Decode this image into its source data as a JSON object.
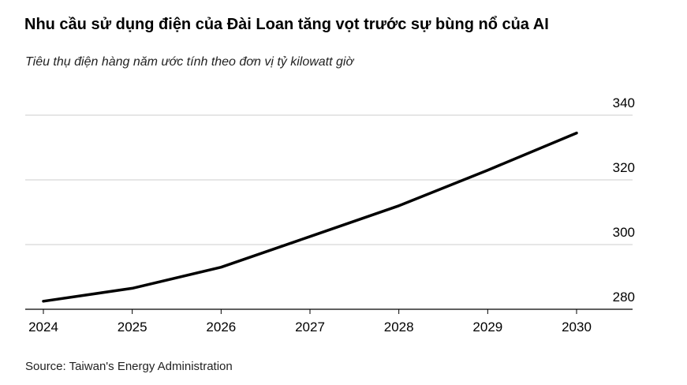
{
  "title": "Nhu cầu sử dụng điện của Đài Loan tăng vọt trước sự bùng nổ của AI",
  "subtitle": "Tiêu thụ điện hàng năm ước tính theo đơn vị tỷ kilowatt giờ",
  "source": "Source: Taiwan's Energy Administration",
  "chart_data": {
    "type": "line",
    "title": "Nhu cầu sử dụng điện của Đài Loan tăng vọt trước sự bùng nổ của AI",
    "subtitle": "Tiêu thụ điện hàng năm ước tính theo đơn vị tỷ kilowatt giờ",
    "x": [
      "2024",
      "2025",
      "2026",
      "2027",
      "2028",
      "2029",
      "2030"
    ],
    "series": [
      {
        "values": [
          282.5,
          286.5,
          293,
          302.5,
          312,
          323,
          334.5
        ],
        "color": "#000000"
      }
    ],
    "xlabel": "",
    "ylabel": "",
    "ylim": [
      280,
      340
    ],
    "yticks": [
      280,
      300,
      320,
      340
    ],
    "grid": true,
    "yaxis_position": "right",
    "legend": "none"
  }
}
